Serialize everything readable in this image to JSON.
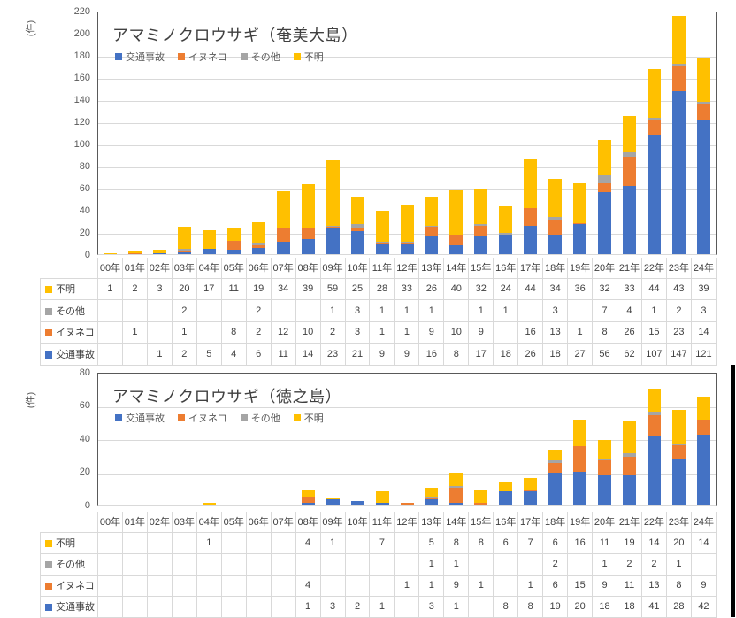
{
  "colors": {
    "traffic_accident": "#4472C4",
    "dog_cat": "#ED7D31",
    "other": "#A5A5A5",
    "unknown": "#FFC000",
    "gridline": "#D9D9D9",
    "axis_border": "#595959",
    "text": "#404040",
    "right_edge_bar": "#000000"
  },
  "chart_data": [
    {
      "type": "bar",
      "stacked": true,
      "title": "アマミノクロウサギ（奄美大島）",
      "unit_label": "(件)",
      "xlabel": "",
      "ylabel": "(件)",
      "ylim": [
        0,
        220
      ],
      "yticks": [
        0,
        20,
        40,
        60,
        80,
        100,
        120,
        140,
        160,
        180,
        200,
        220
      ],
      "grid": true,
      "legend_position": "top-left-inside",
      "categories": [
        "00年",
        "01年",
        "02年",
        "03年",
        "04年",
        "05年",
        "06年",
        "07年",
        "08年",
        "09年",
        "10年",
        "11年",
        "12年",
        "13年",
        "14年",
        "15年",
        "16年",
        "17年",
        "18年",
        "19年",
        "20年",
        "21年",
        "22年",
        "23年",
        "24年"
      ],
      "series": [
        {
          "name": "交通事故",
          "color": "#4472C4",
          "values": [
            0,
            0,
            1,
            2,
            5,
            4,
            6,
            11,
            14,
            23,
            21,
            9,
            9,
            16,
            8,
            17,
            18,
            26,
            18,
            27,
            56,
            62,
            107,
            147,
            121
          ]
        },
        {
          "name": "イヌネコ",
          "color": "#ED7D31",
          "values": [
            0,
            1,
            0,
            1,
            0,
            8,
            2,
            12,
            10,
            2,
            3,
            1,
            1,
            9,
            10,
            9,
            0,
            16,
            13,
            1,
            8,
            26,
            15,
            23,
            14
          ]
        },
        {
          "name": "その他",
          "color": "#A5A5A5",
          "values": [
            0,
            0,
            0,
            2,
            0,
            0,
            2,
            0,
            0,
            1,
            3,
            1,
            1,
            1,
            0,
            1,
            1,
            0,
            3,
            0,
            7,
            4,
            1,
            2,
            3
          ]
        },
        {
          "name": "不明",
          "color": "#FFC000",
          "values": [
            1,
            2,
            3,
            20,
            17,
            11,
            19,
            34,
            39,
            59,
            25,
            28,
            33,
            26,
            40,
            32,
            24,
            44,
            34,
            36,
            32,
            33,
            44,
            43,
            39
          ]
        }
      ],
      "table_row_order": [
        "不明",
        "その他",
        "イヌネコ",
        "交通事故"
      ]
    },
    {
      "type": "bar",
      "stacked": true,
      "title": "アマミノクロウサギ（徳之島）",
      "unit_label": "(件)",
      "xlabel": "",
      "ylabel": "(件)",
      "ylim": [
        0,
        80
      ],
      "yticks": [
        0,
        20,
        40,
        60,
        80
      ],
      "grid": true,
      "legend_position": "top-left-inside",
      "categories": [
        "00年",
        "01年",
        "02年",
        "03年",
        "04年",
        "05年",
        "06年",
        "07年",
        "08年",
        "09年",
        "10年",
        "11年",
        "12年",
        "13年",
        "14年",
        "15年",
        "16年",
        "17年",
        "18年",
        "19年",
        "20年",
        "21年",
        "22年",
        "23年",
        "24年"
      ],
      "series": [
        {
          "name": "交通事故",
          "color": "#4472C4",
          "values": [
            0,
            0,
            0,
            0,
            0,
            0,
            0,
            0,
            1,
            3,
            2,
            1,
            0,
            3,
            1,
            0,
            8,
            8,
            19,
            20,
            18,
            18,
            41,
            28,
            42
          ]
        },
        {
          "name": "イヌネコ",
          "color": "#ED7D31",
          "values": [
            0,
            0,
            0,
            0,
            0,
            0,
            0,
            0,
            4,
            0,
            0,
            0,
            1,
            1,
            9,
            1,
            0,
            1,
            6,
            15,
            9,
            11,
            13,
            8,
            9
          ]
        },
        {
          "name": "その他",
          "color": "#A5A5A5",
          "values": [
            0,
            0,
            0,
            0,
            0,
            0,
            0,
            0,
            0,
            0,
            0,
            0,
            0,
            1,
            1,
            0,
            0,
            0,
            2,
            0,
            1,
            2,
            2,
            1,
            0
          ]
        },
        {
          "name": "不明",
          "color": "#FFC000",
          "values": [
            0,
            0,
            0,
            0,
            1,
            0,
            0,
            0,
            4,
            1,
            0,
            7,
            0,
            5,
            8,
            8,
            6,
            7,
            6,
            16,
            11,
            19,
            14,
            20,
            14
          ]
        }
      ],
      "table_row_order": [
        "不明",
        "その他",
        "イヌネコ",
        "交通事故"
      ]
    }
  ]
}
